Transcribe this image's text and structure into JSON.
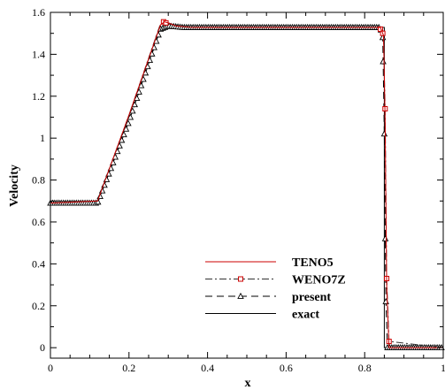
{
  "chart_data": {
    "type": "line",
    "title": "",
    "xlabel": "x",
    "ylabel": "Velocity",
    "xlim": [
      0,
      1
    ],
    "ylim": [
      -0.05,
      1.6
    ],
    "grid": false,
    "legend_position": "bottom-right",
    "xticks": [
      {
        "value": 0,
        "label": "0"
      },
      {
        "value": 0.2,
        "label": "0.2"
      },
      {
        "value": 0.4,
        "label": "0.4"
      },
      {
        "value": 0.6,
        "label": "0.6"
      },
      {
        "value": 0.8,
        "label": "0.8"
      },
      {
        "value": 1,
        "label": "1"
      }
    ],
    "yticks": [
      {
        "value": 0,
        "label": "0"
      },
      {
        "value": 0.2,
        "label": "0.2"
      },
      {
        "value": 0.4,
        "label": "0.4"
      },
      {
        "value": 0.6,
        "label": "0.6"
      },
      {
        "value": 0.8,
        "label": "0.8"
      },
      {
        "value": 1,
        "label": "1"
      },
      {
        "value": 1.2,
        "label": "1.2"
      },
      {
        "value": 1.4,
        "label": "1.4"
      },
      {
        "value": 1.6,
        "label": "1.6"
      }
    ],
    "series": [
      {
        "name": "TENO5",
        "color": "#cc0000",
        "dash": "solid",
        "marker": "none",
        "x": [
          0,
          0.12,
          0.2,
          0.28,
          0.29,
          0.3,
          0.32,
          0.36,
          0.84,
          0.848,
          0.852,
          0.856,
          0.862,
          1.0
        ],
        "y": [
          0.69,
          0.7,
          1.11,
          1.54,
          1.555,
          1.55,
          1.535,
          1.528,
          1.528,
          1.49,
          1.1,
          0.3,
          0.0,
          0.0
        ]
      },
      {
        "name": "WENO7Z",
        "color": "#333333",
        "marker_color": "#cc0000",
        "dash": "dashdot",
        "marker": "square",
        "x": [
          0,
          0.12,
          0.2,
          0.28,
          0.29,
          0.3,
          0.32,
          0.36,
          0.84,
          0.848,
          0.852,
          0.856,
          0.862,
          1.0
        ],
        "y": [
          0.69,
          0.7,
          1.11,
          1.545,
          1.555,
          1.55,
          1.535,
          1.528,
          1.528,
          1.49,
          1.14,
          0.33,
          0.03,
          0.0
        ],
        "marker_points": {
          "x": [
            0.84,
            0.846,
            0.852,
            0.856,
            0.862,
            0.288,
            0.294
          ],
          "y": [
            1.52,
            1.5,
            1.14,
            0.33,
            0.03,
            1.555,
            1.55
          ]
        }
      },
      {
        "name": "present",
        "color": "#000000",
        "dash": "dashed",
        "marker": "triangle",
        "x": [
          0,
          0.12,
          0.2,
          0.28,
          0.3,
          0.34,
          0.84,
          0.846,
          0.85,
          0.854,
          0.858,
          0.866,
          1.0
        ],
        "y": [
          0.69,
          0.69,
          1.08,
          1.52,
          1.535,
          1.528,
          1.528,
          1.48,
          1.02,
          0.22,
          0.0,
          0.0,
          0.0
        ]
      },
      {
        "name": "exact",
        "color": "#000000",
        "dash": "solid",
        "marker": "none",
        "x": [
          0,
          0.12,
          0.28,
          0.85,
          0.85,
          1.0
        ],
        "y": [
          0.69,
          0.69,
          1.528,
          1.528,
          0.0,
          0.0
        ]
      }
    ]
  }
}
